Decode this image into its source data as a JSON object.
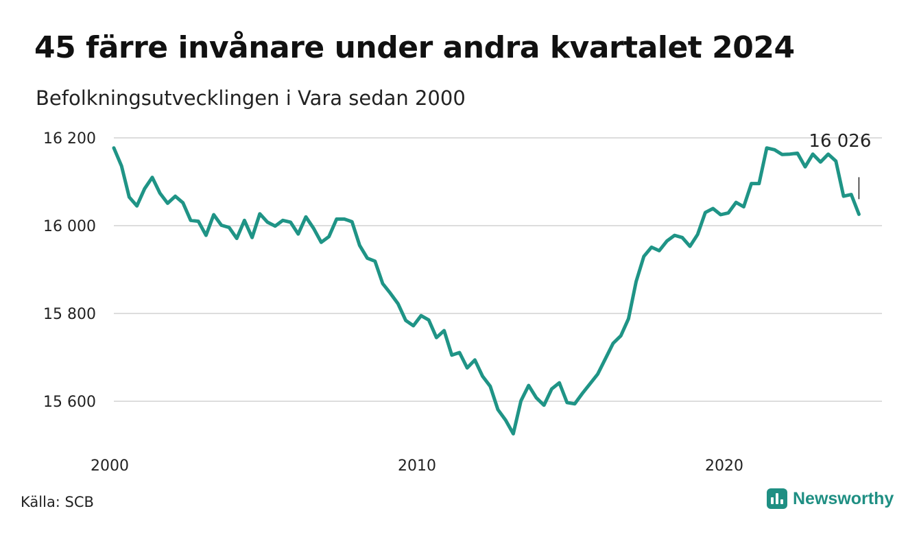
{
  "title": "45 färre invånare under andra kvartalet 2024",
  "subtitle": "Befolkningsutvecklingen i Vara sedan 2000",
  "source": "Källa: SCB",
  "brand": "Newsworthy",
  "chart_data": {
    "type": "line",
    "title": "45 färre invånare under andra kvartalet 2024",
    "subtitle": "Befolkningsutvecklingen i Vara sedan 2000",
    "xlabel": "",
    "ylabel": "",
    "x_ticks": [
      2000,
      2010,
      2020
    ],
    "y_ticks": [
      15600,
      15800,
      16000,
      16200
    ],
    "y_tick_labels": [
      "15 600",
      "15 800",
      "16 000",
      "16 200"
    ],
    "xlim": [
      2000,
      2024.5
    ],
    "ylim": [
      15510,
      16205
    ],
    "grid": true,
    "color": "#1f9486",
    "annotation": {
      "text": "16 026",
      "x": 2024.25,
      "y": 16026
    },
    "x": [
      2000.0,
      2000.25,
      2000.5,
      2000.75,
      2001.0,
      2001.25,
      2001.5,
      2001.75,
      2002.0,
      2002.25,
      2002.5,
      2002.75,
      2003.0,
      2003.25,
      2003.5,
      2003.75,
      2004.0,
      2004.25,
      2004.5,
      2004.75,
      2005.0,
      2005.25,
      2005.5,
      2005.75,
      2006.0,
      2006.25,
      2006.5,
      2006.75,
      2007.0,
      2007.25,
      2007.5,
      2007.75,
      2008.0,
      2008.25,
      2008.5,
      2008.75,
      2009.0,
      2009.25,
      2009.5,
      2009.75,
      2010.0,
      2010.25,
      2010.5,
      2010.75,
      2011.0,
      2011.25,
      2011.5,
      2011.75,
      2012.0,
      2012.25,
      2012.5,
      2012.75,
      2013.0,
      2013.25,
      2013.5,
      2013.75,
      2014.0,
      2014.25,
      2014.5,
      2014.75,
      2015.0,
      2015.25,
      2015.5,
      2015.75,
      2016.0,
      2016.25,
      2016.5,
      2016.75,
      2017.0,
      2017.25,
      2017.5,
      2017.75,
      2018.0,
      2018.25,
      2018.5,
      2018.75,
      2019.0,
      2019.25,
      2019.5,
      2019.75,
      2020.0,
      2020.25,
      2020.5,
      2020.75,
      2021.0,
      2021.25,
      2021.5,
      2021.75,
      2022.0,
      2022.25,
      2022.5,
      2022.75,
      2023.0,
      2023.25,
      2023.5,
      2023.75,
      2024.0,
      2024.25
    ],
    "y": [
      16177,
      16136,
      16065,
      16045,
      16084,
      16110,
      16074,
      16051,
      16067,
      16052,
      16012,
      16010,
      15978,
      16025,
      16001,
      15996,
      15971,
      16012,
      15973,
      16027,
      16008,
      15999,
      16012,
      16008,
      15981,
      16020,
      15994,
      15962,
      15975,
      16015,
      16015,
      16009,
      15955,
      15926,
      15919,
      15868,
      15846,
      15822,
      15784,
      15772,
      15795,
      15785,
      15745,
      15761,
      15705,
      15711,
      15676,
      15694,
      15657,
      15634,
      15581,
      15557,
      15526,
      15601,
      15636,
      15608,
      15591,
      15628,
      15642,
      15597,
      15594,
      15618,
      15640,
      15662,
      15697,
      15732,
      15749,
      15788,
      15873,
      15930,
      15951,
      15943,
      15965,
      15978,
      15973,
      15953,
      15980,
      16030,
      16039,
      16025,
      16029,
      16053,
      16043,
      16096,
      16096,
      16177,
      16173,
      16162,
      16163,
      16165,
      16134,
      16163,
      16145,
      16163,
      16147,
      16067,
      16071,
      16026
    ]
  }
}
